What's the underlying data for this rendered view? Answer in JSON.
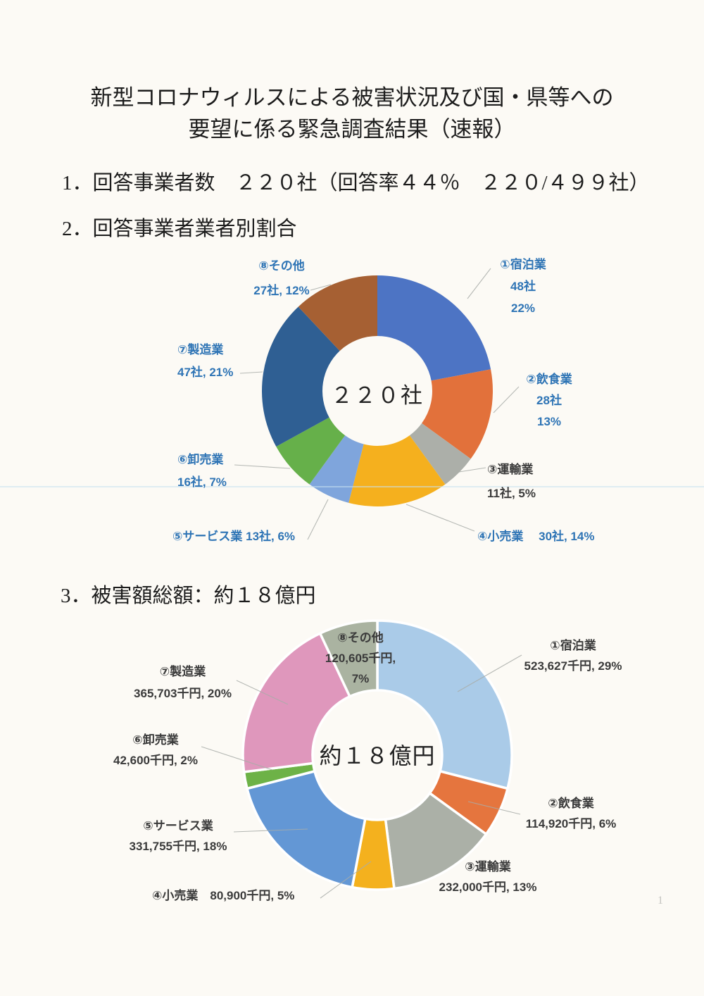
{
  "title": {
    "line1": "新型コロナウィルスによる被害状況及び国・県等への",
    "line2": "要望に係る緊急調査結果（速報）"
  },
  "sections": {
    "s1": "1．回答事業者数　２２０社（回答率４４％　２２０/４９９社）",
    "s2": "2．回答事業者業者別割合",
    "s3": "3．被害額総額：約１８億円"
  },
  "page_number": "1",
  "chart_data": [
    {
      "type": "pie",
      "style": "donut",
      "title": "回答事業者業者別割合",
      "center_label": "２２０社",
      "total": 220,
      "unit": "社",
      "legend_position": "callout-labels",
      "categories": [
        "①宿泊業",
        "②飲食業",
        "③運輸業",
        "④小売業",
        "⑤サービス業",
        "⑥卸売業",
        "⑦製造業",
        "⑧その他"
      ],
      "series": [
        {
          "name": "回答事業者数（社）",
          "values": [
            48,
            28,
            11,
            30,
            13,
            16,
            47,
            27
          ]
        }
      ],
      "percents": [
        22,
        13,
        5,
        14,
        6,
        7,
        21,
        12
      ],
      "colors": [
        "#4D74C4",
        "#E2713B",
        "#ACAFA9",
        "#F5B01E",
        "#7FA5DC",
        "#66B04A",
        "#2F5F93",
        "#A66033"
      ],
      "label_color": "#2E74B5",
      "labels": [
        {
          "lines": [
            "①宿泊業",
            "48社",
            "22%"
          ]
        },
        {
          "lines": [
            "②飲食業",
            "28社",
            "13%"
          ]
        },
        {
          "lines": [
            "③運輸業",
            "11社, 5%"
          ],
          "color": "#3B3B3B"
        },
        {
          "lines": [
            "④小売業　 30社, 14%"
          ]
        },
        {
          "lines": [
            "⑤サービス業 13社, 6%"
          ]
        },
        {
          "lines": [
            "⑥卸売業",
            "16社, 7%"
          ]
        },
        {
          "lines": [
            "⑦製造業",
            "47社, 21%"
          ]
        },
        {
          "lines": [
            "⑧その他",
            "27社, 12%"
          ]
        }
      ]
    },
    {
      "type": "pie",
      "style": "donut",
      "title": "被害額総額：約１８億円",
      "center_label": "約１８億円",
      "unit": "千円",
      "legend_position": "callout-labels",
      "categories": [
        "①宿泊業",
        "②飲食業",
        "③運輸業",
        "④小売業",
        "⑤サービス業",
        "⑥卸売業",
        "⑦製造業",
        "⑧その他"
      ],
      "series": [
        {
          "name": "被害額（千円）",
          "values": [
            523627,
            114920,
            232000,
            80900,
            331755,
            42600,
            365703,
            120605
          ]
        }
      ],
      "percents": [
        29,
        6,
        13,
        5,
        18,
        2,
        20,
        7
      ],
      "colors": [
        "#AACBE8",
        "#E5753E",
        "#ABB0A7",
        "#F4B11E",
        "#6397D5",
        "#6DB247",
        "#DF97BC",
        "#AAB3A1"
      ],
      "label_color": "#3A3A3A",
      "labels": [
        {
          "lines": [
            "①宿泊業",
            "523,627千円, 29%"
          ]
        },
        {
          "lines": [
            "②飲食業",
            "114,920千円, 6%"
          ]
        },
        {
          "lines": [
            "③運輸業",
            "232,000千円, 13%"
          ]
        },
        {
          "lines": [
            "④小売業　80,900千円, 5%"
          ]
        },
        {
          "lines": [
            "⑤サービス業",
            "331,755千円, 18%"
          ]
        },
        {
          "lines": [
            "⑥卸売業",
            "42,600千円, 2%"
          ]
        },
        {
          "lines": [
            "⑦製造業",
            "365,703千円, 20%"
          ]
        },
        {
          "lines": [
            "⑧その他",
            "120,605千円,",
            "7%"
          ]
        }
      ]
    }
  ]
}
